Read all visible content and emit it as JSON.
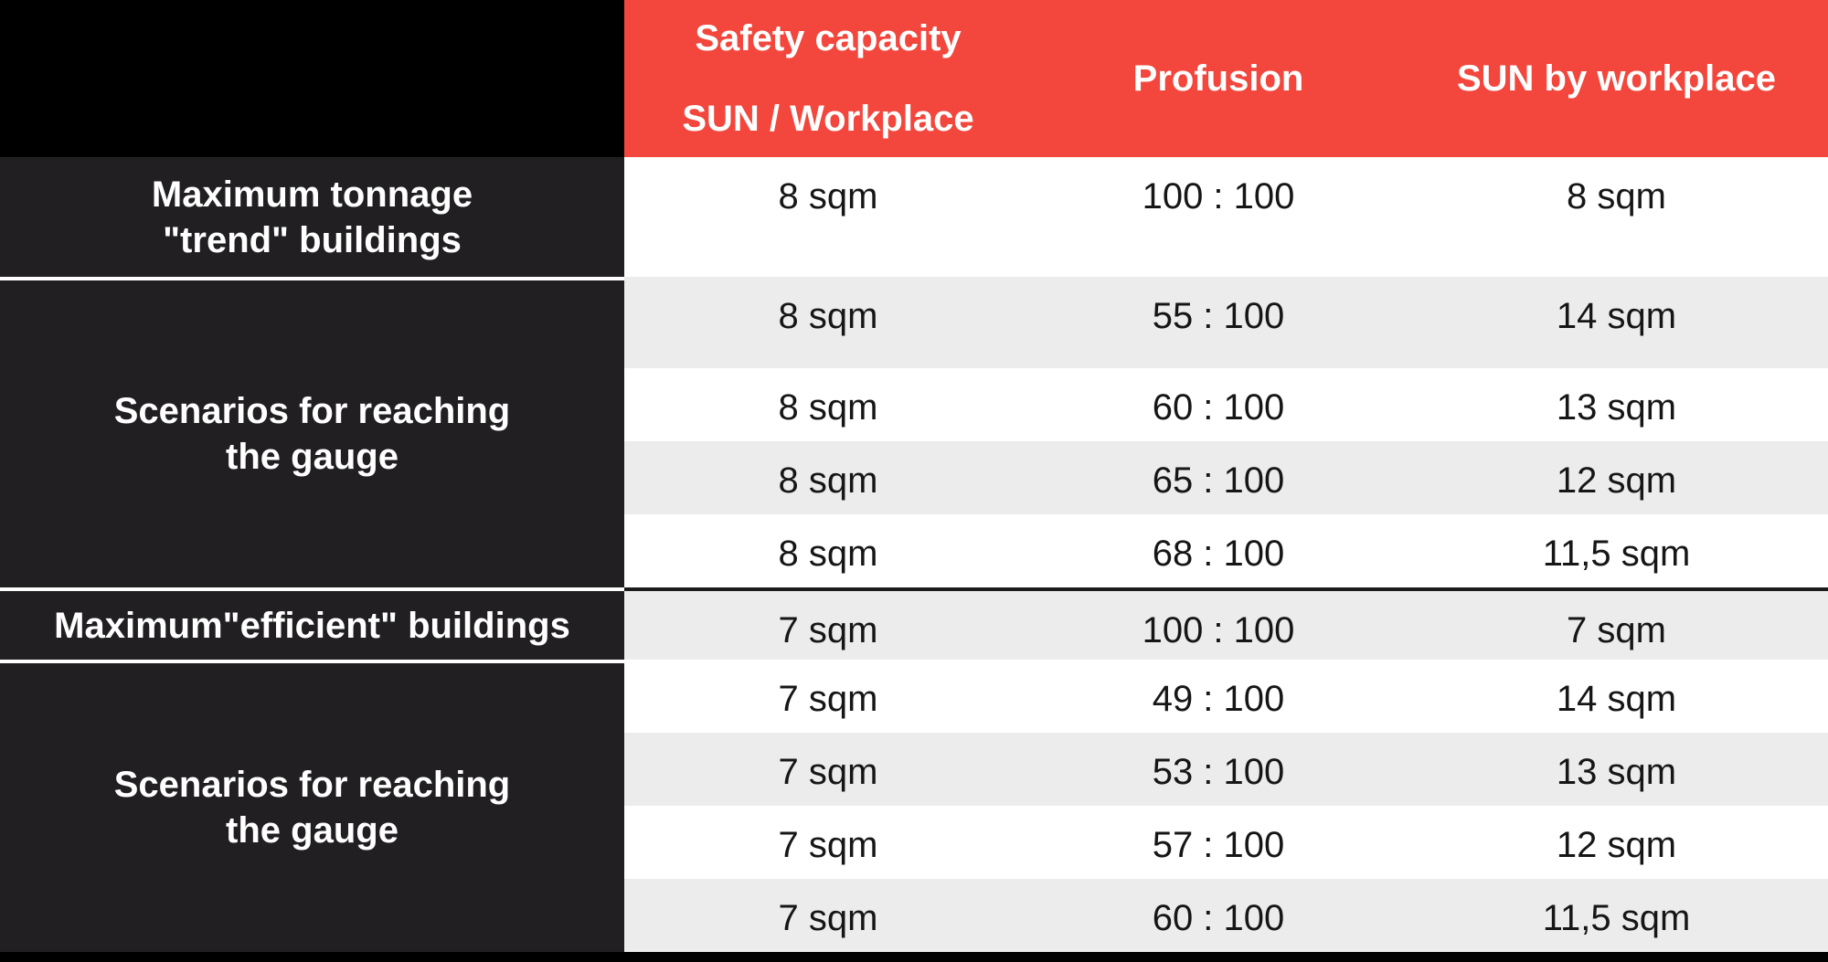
{
  "header": {
    "capacity_line1": "Safety capacity",
    "capacity_line2": "SUN / Workplace",
    "profusion": "Profusion",
    "sun_by_workplace": "SUN by workplace"
  },
  "row_labels": [
    {
      "lines": [
        "Maximum tonnage",
        "\"trend\" buildings"
      ]
    },
    {
      "lines": [
        "Scenarios for reaching",
        "the gauge"
      ]
    },
    {
      "lines": [
        "Maximum\"efficient\" buildings"
      ]
    },
    {
      "lines": [
        "Scenarios for reaching",
        "the gauge"
      ]
    }
  ],
  "rows": [
    {
      "capacity": "8 sqm",
      "profusion": "100 : 100",
      "sun": "8 sqm"
    },
    {
      "capacity": "8 sqm",
      "profusion": "55 : 100",
      "sun": "14 sqm"
    },
    {
      "capacity": "8 sqm",
      "profusion": "60 : 100",
      "sun": "13 sqm"
    },
    {
      "capacity": "8 sqm",
      "profusion": "65 : 100",
      "sun": "12 sqm"
    },
    {
      "capacity": "8 sqm",
      "profusion": "68 : 100",
      "sun": "11,5 sqm"
    },
    {
      "capacity": "7 sqm",
      "profusion": "100 : 100",
      "sun": "7 sqm"
    },
    {
      "capacity": "7 sqm",
      "profusion": "49 : 100",
      "sun": "14 sqm"
    },
    {
      "capacity": "7 sqm",
      "profusion": "53 : 100",
      "sun": "13 sqm"
    },
    {
      "capacity": "7 sqm",
      "profusion": "57 : 100",
      "sun": "12 sqm"
    },
    {
      "capacity": "7 sqm",
      "profusion": "60 : 100",
      "sun": "11,5 sqm"
    }
  ],
  "colors": {
    "header_red": "#F3463C",
    "label_bg": "#211F22",
    "row_white": "#FFFFFF",
    "row_alt": "#ECECEC",
    "frame_black": "#000000",
    "divider_white": "#FFFFFF",
    "divider_black": "#1B1B1B",
    "text_light": "#FFFFFF",
    "text_dark": "#161616"
  }
}
